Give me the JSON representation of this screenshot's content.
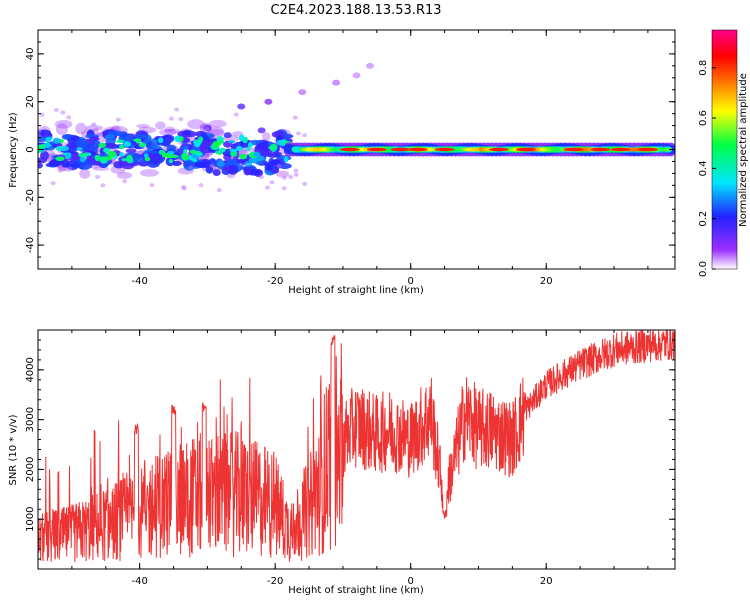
{
  "title": "C2E4.2023.188.13.53.R13",
  "chart_data": [
    {
      "type": "heatmap",
      "xlabel": "Height of straight line (km)",
      "ylabel": "Frequency (Hz)",
      "xlim": [
        -55,
        39
      ],
      "ylim": [
        -50,
        50
      ],
      "xticks": [
        -40,
        -20,
        0,
        20
      ],
      "yticks": [
        -40,
        -20,
        0,
        20,
        40
      ],
      "colorbar": {
        "label": "Normalized spectral amplitude",
        "range": [
          0,
          0.95
        ],
        "ticks": [
          0.0,
          0.2,
          0.4,
          0.6,
          0.8
        ],
        "colors": [
          "#ffffff",
          "#9b30ff",
          "#2222ff",
          "#00e5ff",
          "#00ff44",
          "#ffff00",
          "#ff7700",
          "#ff0000",
          "#ff0088"
        ]
      },
      "description_segments": [
        {
          "x_range": [
            -55,
            -18
          ],
          "freq_center": 0,
          "freq_spread": 8,
          "amplitude": 0.3
        },
        {
          "x_range": [
            -18,
            39
          ],
          "freq_center": 0,
          "freq_spread": 2,
          "amplitude": 0.8
        }
      ],
      "scattered_points": [
        {
          "x": -25,
          "y": 18,
          "amp": 0.15
        },
        {
          "x": -21,
          "y": 20,
          "amp": 0.1
        },
        {
          "x": -16,
          "y": 24,
          "amp": 0.05
        },
        {
          "x": -11,
          "y": 28,
          "amp": 0.05
        },
        {
          "x": -8,
          "y": 31,
          "amp": 0.04
        },
        {
          "x": -6,
          "y": 35,
          "amp": 0.04
        },
        {
          "x": -33,
          "y": 7,
          "amp": 0.2
        },
        {
          "x": -30,
          "y": 9,
          "amp": 0.15
        },
        {
          "x": -27,
          "y": 6,
          "amp": 0.2
        },
        {
          "x": -22,
          "y": 8,
          "amp": 0.15
        },
        {
          "x": -28,
          "y": -6,
          "amp": 0.3
        },
        {
          "x": -24,
          "y": -6,
          "amp": 0.3
        }
      ]
    },
    {
      "type": "line",
      "xlabel": "Height of straight line (km)",
      "ylabel": "SNR (10 * v/v)",
      "xlim": [
        -55,
        39
      ],
      "ylim": [
        0,
        4800
      ],
      "xticks": [
        -40,
        -20,
        0,
        20
      ],
      "yticks": [
        1000,
        2000,
        3000,
        4000
      ],
      "color": "#ee3333",
      "x": [
        -55,
        -50,
        -45,
        -40,
        -35,
        -30,
        -25,
        -20,
        -18,
        -15,
        -12,
        -10,
        -8,
        -5,
        -3,
        0,
        3,
        5,
        8,
        10,
        12,
        15,
        17,
        20,
        25,
        30,
        35,
        39
      ],
      "y": [
        600,
        700,
        900,
        1100,
        1400,
        1500,
        1500,
        1300,
        800,
        1200,
        2200,
        2600,
        2900,
        2700,
        2800,
        2600,
        3100,
        1400,
        3100,
        2800,
        2800,
        2600,
        3200,
        3700,
        4100,
        4400,
        4500,
        4550
      ],
      "peaks": [
        {
          "x": -11.5,
          "y": 4700
        },
        {
          "x": -40.5,
          "y": 2900
        },
        {
          "x": -35,
          "y": 3300
        },
        {
          "x": -30.5,
          "y": 3350
        },
        {
          "x": 5,
          "y": 1200
        }
      ]
    }
  ]
}
